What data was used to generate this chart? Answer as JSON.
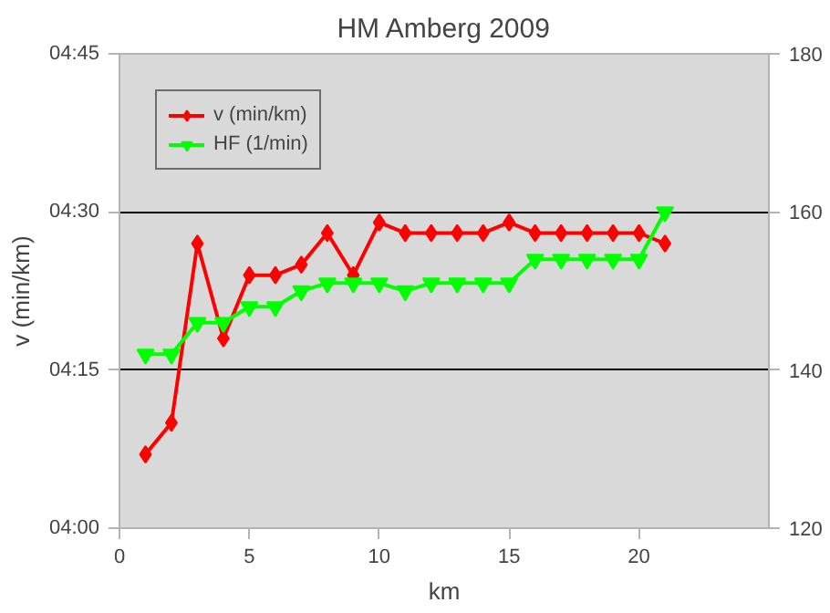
{
  "chart_data": {
    "type": "line",
    "title": "HM Amberg 2009",
    "xlabel": "km",
    "ylabel": "v (min/km)",
    "x": [
      1,
      2,
      3,
      4,
      5,
      6,
      7,
      8,
      9,
      10,
      11,
      12,
      13,
      14,
      15,
      16,
      17,
      18,
      19,
      20,
      21
    ],
    "series": [
      {
        "name": "v (min/km)",
        "color": "#ff0000",
        "marker": "diamond",
        "values": [
          247,
          250,
          267,
          258,
          264,
          264,
          265,
          268,
          264,
          269,
          268,
          268,
          268,
          268,
          269,
          268,
          268,
          268,
          268,
          268,
          267
        ]
      },
      {
        "name": "HF (1/min)",
        "color": "#00ff00",
        "marker": "triangle",
        "axis": "y2",
        "values": [
          142,
          142,
          146,
          146,
          148,
          148,
          150,
          151,
          151,
          151,
          150,
          151,
          151,
          151,
          151,
          154,
          154,
          154,
          154,
          154,
          160
        ]
      }
    ],
    "xlim": [
      0,
      25
    ],
    "xticks": [
      0,
      5,
      10,
      15,
      20
    ],
    "ylim": [
      240,
      285
    ],
    "yticks": [
      {
        "value": 240,
        "label": "04:00"
      },
      {
        "value": 255,
        "label": "04:15"
      },
      {
        "value": 270,
        "label": "04:30"
      },
      {
        "value": 285,
        "label": "04:45"
      }
    ],
    "y2lim": [
      120,
      180
    ],
    "y2ticks": [
      120,
      140,
      160,
      180
    ],
    "grid": "y",
    "legend": "top left",
    "line_style": "solid"
  }
}
